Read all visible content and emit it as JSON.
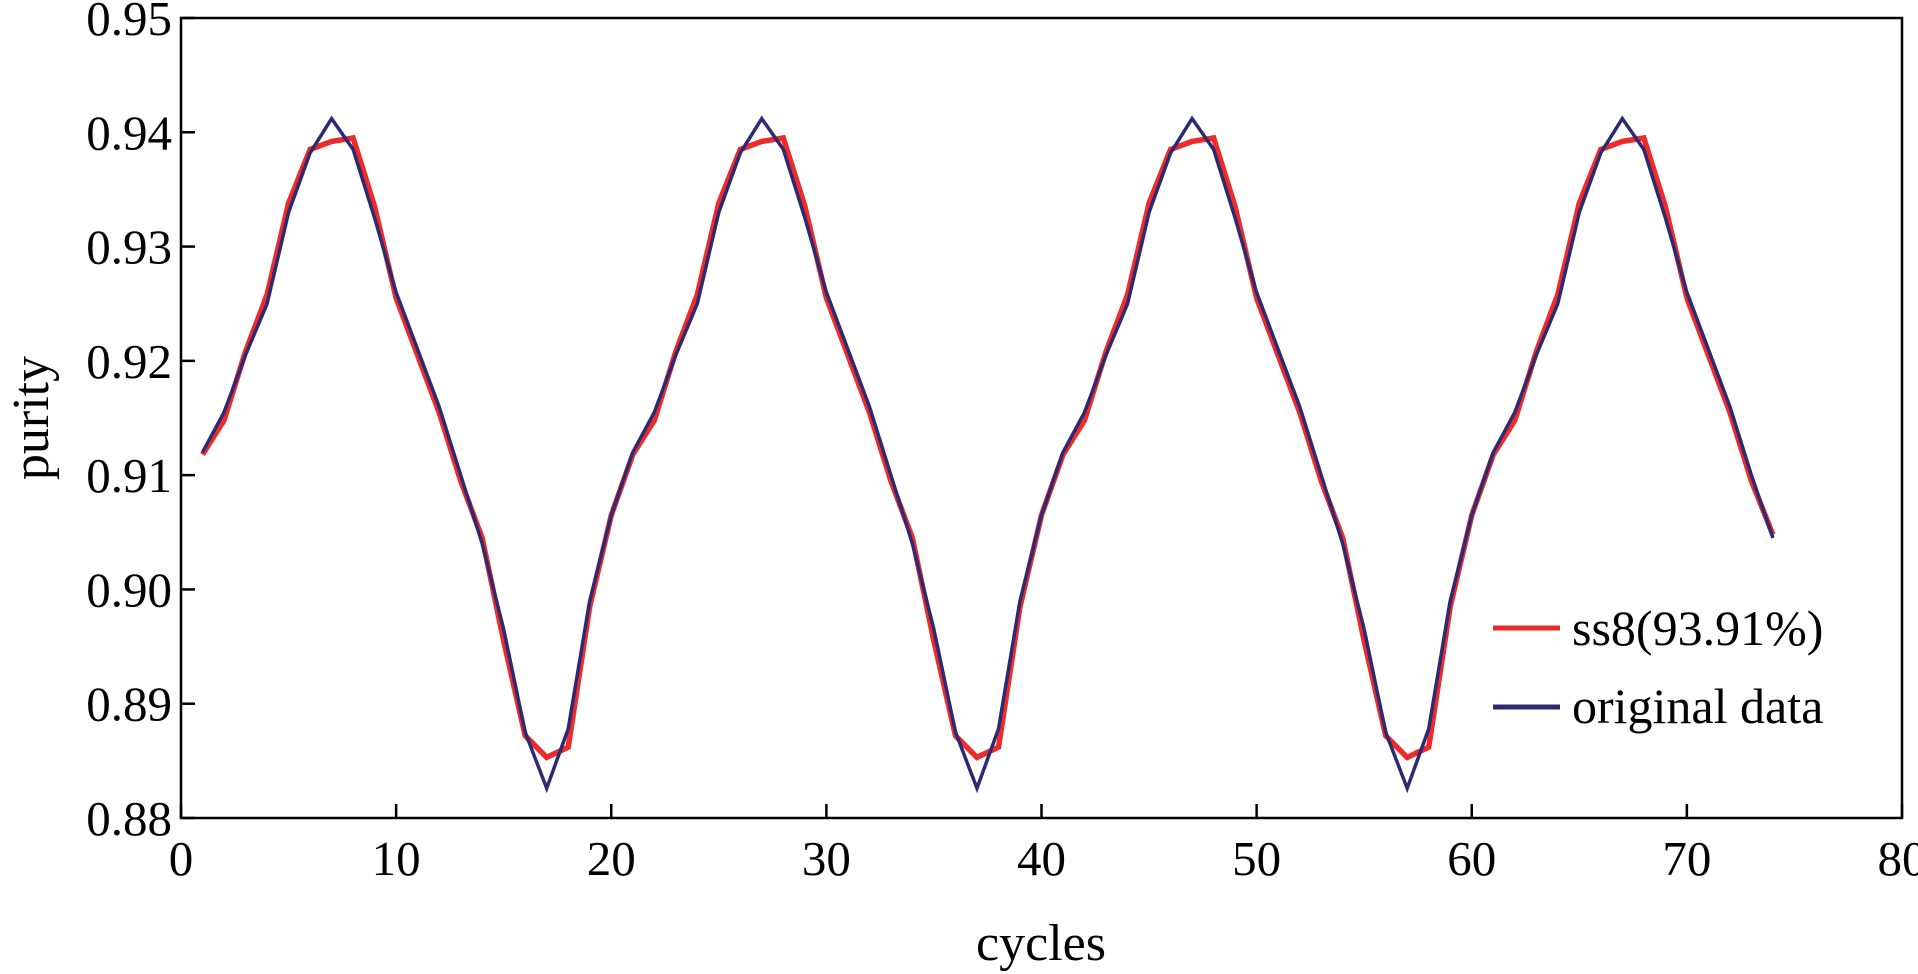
{
  "chart_data": {
    "type": "line",
    "title": "",
    "xlabel": "cycles",
    "ylabel": "purity",
    "xlim": [
      0,
      80
    ],
    "ylim": [
      0.88,
      0.95
    ],
    "xticks": [
      0,
      10,
      20,
      30,
      40,
      50,
      60,
      70,
      80
    ],
    "xtick_labels": [
      "0",
      "10",
      "20",
      "30",
      "40",
      "50",
      "60",
      "70",
      "80"
    ],
    "yticks": [
      0.88,
      0.89,
      0.9,
      0.91,
      0.92,
      0.93,
      0.94,
      0.95
    ],
    "ytick_labels": [
      "0.88",
      "0.89",
      "0.90",
      "0.91",
      "0.92",
      "0.93",
      "0.94",
      "0.95"
    ],
    "grid": false,
    "legend_position": "bottom-right",
    "series": [
      {
        "name": "ss8(93.91%)",
        "color": "#ee2b2b",
        "x": [
          1,
          2,
          3,
          4,
          5,
          6,
          7,
          8,
          9,
          10,
          11,
          12,
          13,
          14,
          15,
          16,
          17,
          18,
          19,
          20,
          21,
          22,
          23,
          24,
          25,
          26,
          27,
          28,
          29,
          30,
          31,
          32,
          33,
          34,
          35,
          36,
          37,
          38,
          39,
          40,
          41,
          42,
          43,
          44,
          45,
          46,
          47,
          48,
          49,
          50,
          51,
          52,
          53,
          54,
          55,
          56,
          57,
          58,
          59,
          60,
          61,
          62,
          63,
          64,
          65,
          66,
          67,
          68,
          69,
          70,
          71,
          72,
          73,
          74
        ],
        "y": [
          0.9118,
          0.9148,
          0.9208,
          0.9258,
          0.9338,
          0.9385,
          0.9392,
          0.9395,
          0.9335,
          0.9255,
          0.9205,
          0.9155,
          0.9095,
          0.9045,
          0.8955,
          0.8872,
          0.8853,
          0.8862,
          0.8985,
          0.9065,
          0.9118,
          0.9148,
          0.9208,
          0.9258,
          0.9338,
          0.9385,
          0.9392,
          0.9395,
          0.9335,
          0.9255,
          0.9205,
          0.9155,
          0.9095,
          0.9045,
          0.8955,
          0.8872,
          0.8853,
          0.8862,
          0.8985,
          0.9065,
          0.9118,
          0.9148,
          0.9208,
          0.9258,
          0.9338,
          0.9385,
          0.9392,
          0.9395,
          0.9335,
          0.9255,
          0.9205,
          0.9155,
          0.9095,
          0.9045,
          0.8955,
          0.8872,
          0.8853,
          0.8862,
          0.8985,
          0.9065,
          0.9118,
          0.9148,
          0.9208,
          0.9258,
          0.9338,
          0.9385,
          0.9392,
          0.9395,
          0.9335,
          0.9255,
          0.9205,
          0.9155,
          0.9095,
          0.9048
        ]
      },
      {
        "name": "original data",
        "color": "#2e2a72",
        "x": [
          1,
          2,
          3,
          4,
          5,
          6,
          7,
          8,
          9,
          10,
          11,
          12,
          13,
          14,
          15,
          16,
          17,
          18,
          19,
          20,
          21,
          22,
          23,
          24,
          25,
          26,
          27,
          28,
          29,
          30,
          31,
          32,
          33,
          34,
          35,
          36,
          37,
          38,
          39,
          40,
          41,
          42,
          43,
          44,
          45,
          46,
          47,
          48,
          49,
          50,
          51,
          52,
          53,
          54,
          55,
          56,
          57,
          58,
          59,
          60,
          61,
          62,
          63,
          64,
          65,
          66,
          67,
          68,
          69,
          70,
          71,
          72,
          73,
          74
        ],
        "y": [
          0.912,
          0.9155,
          0.9205,
          0.925,
          0.933,
          0.9382,
          0.9412,
          0.9385,
          0.9325,
          0.926,
          0.921,
          0.916,
          0.91,
          0.904,
          0.8965,
          0.8875,
          0.8826,
          0.8878,
          0.899,
          0.9065,
          0.912,
          0.9155,
          0.9205,
          0.925,
          0.933,
          0.9382,
          0.9412,
          0.9385,
          0.9325,
          0.926,
          0.921,
          0.916,
          0.91,
          0.904,
          0.8965,
          0.8875,
          0.8826,
          0.8878,
          0.899,
          0.9065,
          0.912,
          0.9155,
          0.9205,
          0.925,
          0.933,
          0.9382,
          0.9412,
          0.9385,
          0.9325,
          0.926,
          0.921,
          0.916,
          0.91,
          0.904,
          0.8965,
          0.8875,
          0.8826,
          0.8878,
          0.899,
          0.9065,
          0.912,
          0.9155,
          0.9205,
          0.925,
          0.933,
          0.9382,
          0.9412,
          0.9385,
          0.9325,
          0.926,
          0.921,
          0.916,
          0.91,
          0.9045
        ]
      }
    ]
  }
}
